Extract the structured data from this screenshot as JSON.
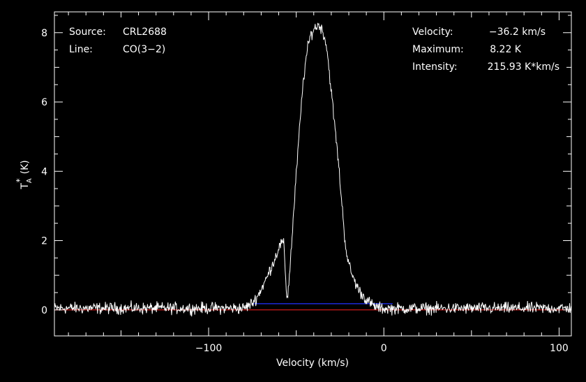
{
  "chart_data": {
    "type": "line",
    "title": "",
    "xlabel": "Velocity (km/s)",
    "ylabel": {
      "base": "T",
      "superscript": "*",
      "subscript": "A",
      "unit": "(K)"
    },
    "xlim": [
      -188,
      107
    ],
    "ylim": [
      -0.75,
      8.6
    ],
    "x_ticks": [
      -100,
      0,
      100
    ],
    "x_tick_labels": [
      "−100",
      "0",
      "100"
    ],
    "y_ticks": [
      0,
      2,
      4,
      6,
      8
    ],
    "y_tick_labels": [
      "0",
      "2",
      "4",
      "6",
      "8"
    ],
    "grid": false,
    "annotations_left": [
      {
        "key": "Source:",
        "value": "CRL2688"
      },
      {
        "key": "Line:",
        "value": "CO(3−2)"
      }
    ],
    "annotations_right": [
      {
        "key": "Velocity:",
        "value": "−36.2 km/s"
      },
      {
        "key": "Maximum:",
        "value": "8.22 K"
      },
      {
        "key": "Intensity:",
        "value": "215.93 K*km/s"
      }
    ],
    "baseline": {
      "y": 0,
      "color": "#ff2020"
    },
    "integration_window": {
      "x": [
        -75,
        5
      ],
      "y": 0.18,
      "color": "#2030ff"
    },
    "series": [
      {
        "color": "#ffffff",
        "x": [
          -188,
          -80,
          -78,
          -75,
          -72,
          -70,
          -67,
          -65,
          -62,
          -60,
          -58,
          -57,
          -56,
          -55.5,
          -55,
          -54,
          -52,
          -50,
          -48,
          -46,
          -44,
          -42,
          -40,
          -38,
          -37,
          -36,
          -35,
          -34,
          -33,
          -32,
          -30,
          -28,
          -26,
          -24,
          -22,
          -20,
          -18,
          -16,
          -14,
          -12,
          -10,
          -8,
          -6,
          -4,
          -2,
          0,
          107
        ],
        "y": [
          0.05,
          0.05,
          0.1,
          0.2,
          0.4,
          0.6,
          0.9,
          1.15,
          1.5,
          1.8,
          1.95,
          1.85,
          0.9,
          0.45,
          0.35,
          0.9,
          2.4,
          3.9,
          5.3,
          6.6,
          7.4,
          7.9,
          8.1,
          8.2,
          8.22,
          8.15,
          8.05,
          7.9,
          7.7,
          7.3,
          6.3,
          5.3,
          4.3,
          3.1,
          1.9,
          1.3,
          1.0,
          0.75,
          0.55,
          0.42,
          0.3,
          0.2,
          0.12,
          0.08,
          0.05,
          0.04,
          0.05
        ]
      }
    ]
  }
}
